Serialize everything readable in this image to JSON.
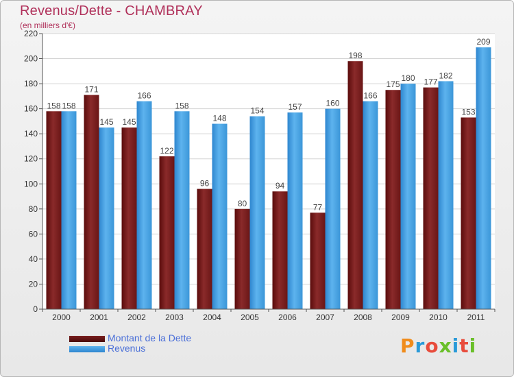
{
  "header": {
    "title": "Revenus/Dette - CHAMBRAY",
    "subtitle": "(en milliers d'€)"
  },
  "logo": {
    "text": "Proxiti",
    "colors": [
      "#f08c1c",
      "#2a9ad8",
      "#e84c3c",
      "#6abf2a",
      "#2a9ad8",
      "#e84c3c",
      "#6abf2a"
    ]
  },
  "colors": {
    "dette": "#7a1f1f",
    "revenus": "#4fa8e8",
    "label_text": "#444444"
  },
  "chart_data": {
    "type": "bar",
    "title": "Revenus/Dette - CHAMBRAY",
    "subtitle": "(en milliers d'€)",
    "categories": [
      "2000",
      "2001",
      "2002",
      "2003",
      "2004",
      "2005",
      "2006",
      "2007",
      "2008",
      "2009",
      "2010",
      "2011"
    ],
    "series": [
      {
        "name": "Montant de la Dette",
        "values": [
          158,
          171,
          145,
          122,
          96,
          80,
          94,
          77,
          198,
          175,
          177,
          153
        ]
      },
      {
        "name": "Revenus",
        "values": [
          158,
          145,
          166,
          158,
          148,
          154,
          157,
          160,
          166,
          180,
          182,
          209
        ]
      }
    ],
    "ylim": [
      0,
      220
    ],
    "yticks": [
      0,
      20,
      40,
      60,
      80,
      100,
      120,
      140,
      160,
      180,
      200,
      220
    ],
    "grid": true,
    "legend_position": "bottom-left"
  }
}
